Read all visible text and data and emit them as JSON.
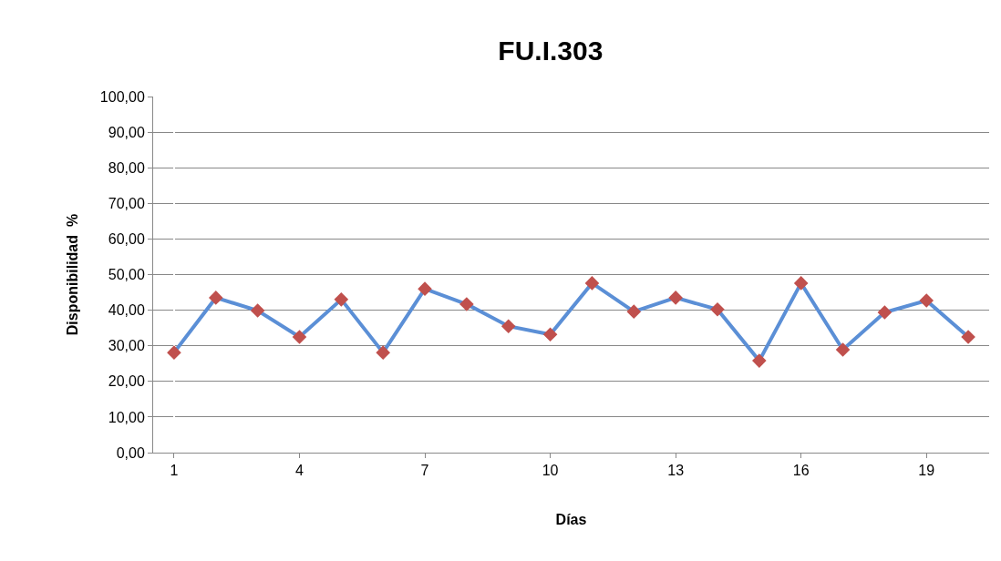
{
  "chart_data": {
    "type": "line",
    "title": "FU.I.303",
    "xlabel": "Días",
    "ylabel": "Disponibilidad  %",
    "categories": [
      "1",
      null,
      null,
      "4",
      null,
      null,
      "7",
      null,
      null,
      "10",
      null,
      null,
      "13",
      null,
      null,
      "16",
      null,
      null,
      "19",
      null
    ],
    "series": [
      {
        "color": "#5b8fd6",
        "colors": [
          "#c0504d",
          "#c0504d",
          "#c0504d",
          "#c0504d",
          "#c0504d",
          "#c0504d",
          "#c0504d",
          "#c0504d",
          "#c0504d",
          "#c0504d",
          "#c0504d",
          "#c0504d",
          "#c0504d",
          "#c0504d",
          "#c0504d",
          "#c0504d",
          "#c0504d",
          "#c0504d",
          "#c0504d",
          "#c0504d"
        ],
        "values": [
          28.1,
          43.5,
          39.9,
          32.5,
          43.0,
          28.1,
          46.0,
          41.7,
          35.5,
          33.2,
          47.6,
          39.6,
          43.5,
          40.2,
          25.8,
          47.6,
          28.9,
          39.4,
          42.7,
          32.5
        ]
      }
    ],
    "ylim": [
      0,
      100
    ],
    "yticks": [
      {
        "value": 0,
        "label": "0,00"
      },
      {
        "value": 10,
        "label": "10,00"
      },
      {
        "value": 20,
        "label": "20,00"
      },
      {
        "value": 30,
        "label": "30,00"
      },
      {
        "value": 40,
        "label": "40,00"
      },
      {
        "value": 50,
        "label": "50,00"
      },
      {
        "value": 60,
        "label": "60,00"
      },
      {
        "value": 70,
        "label": "70,00"
      },
      {
        "value": 80,
        "label": "80,00"
      },
      {
        "value": 90,
        "label": "90,00"
      },
      {
        "value": 100,
        "label": "100,00"
      }
    ],
    "grid": "y",
    "marker": "diamond",
    "line_style": "solid",
    "legend": false
  }
}
